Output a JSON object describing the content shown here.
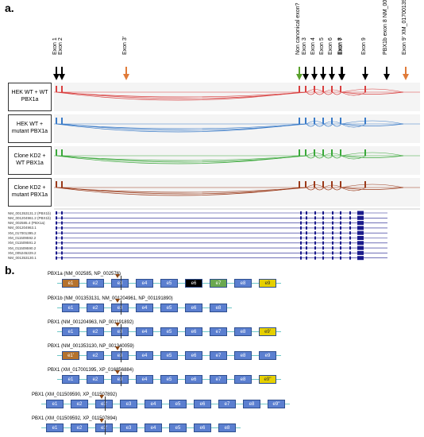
{
  "panel_a": {
    "letter": "a.",
    "exon_labels": [
      {
        "text": "Exon 1",
        "color": "#000000"
      },
      {
        "text": "Exon 2",
        "color": "#000000"
      },
      {
        "text": "Exon 3'",
        "color": "#e07b39"
      },
      {
        "text": "Non canonical exon?",
        "color": "#5aa02c"
      },
      {
        "text": "Exon 3",
        "color": "#000000"
      },
      {
        "text": "Exon 4",
        "color": "#000000"
      },
      {
        "text": "Exon 5",
        "color": "#000000"
      },
      {
        "text": "Exon 6",
        "color": "#000000"
      },
      {
        "text": "Exon 7",
        "color": "#000000"
      },
      {
        "text": "Exon 8",
        "color": "#000000"
      },
      {
        "text": "Exon 9",
        "color": "#000000"
      },
      {
        "text": "PBX1b exon 8 NM_001353131",
        "color": "#000000"
      },
      {
        "text": "Exon 9' XM_017001395",
        "color": "#e07b39"
      }
    ],
    "conditions": [
      {
        "label": "HEK WT + WT PBX1a",
        "color": "#d94040"
      },
      {
        "label": "HEK WT + mutant PBX1a",
        "color": "#3a7bc8"
      },
      {
        "label": "Clone KD2 + WT PBX1a",
        "color": "#3aa83a"
      },
      {
        "label": "Clone KD2 + mutant PBX1a",
        "color": "#9b3a1a"
      }
    ],
    "reference_tracks": [
      "NM_001353131.2 (PBX1b)",
      "NM_001204961.2 (PBX1b)",
      "NM_002585.4 (PBX1a)",
      "NM_001204963.1",
      "XM_017001395.2",
      "XM_011509592.2",
      "XM_011509591.2",
      "XM_011509590.2",
      "XM_005245229.2",
      "NM_001353130.1"
    ]
  },
  "panel_b": {
    "letter": "b.",
    "isoforms": [
      {
        "title": "PBX1a (NM_002585, NP_002576)",
        "exons": [
          {
            "label": "e1",
            "color": "#b5722d"
          },
          {
            "label": "e2",
            "color": "#5b7fd0"
          },
          {
            "label": "e3",
            "color": "#5b7fd0"
          },
          {
            "label": "e4",
            "color": "#5b7fd0"
          },
          {
            "label": "e5",
            "color": "#5b7fd0"
          },
          {
            "label": "e6",
            "color": "#000000"
          },
          {
            "label": "e7",
            "color": "#6aa84f"
          },
          {
            "label": "e8",
            "color": "#5b7fd0"
          },
          {
            "label": "e9",
            "color": "#e6d000"
          }
        ]
      },
      {
        "title": "PBX1b (NM_001353131, NM_001204961, NP_001191890)",
        "exons": [
          {
            "label": "e1",
            "color": "#5b7fd0"
          },
          {
            "label": "e2",
            "color": "#5b7fd0"
          },
          {
            "label": "e3",
            "color": "#5b7fd0"
          },
          {
            "label": "e4",
            "color": "#5b7fd0"
          },
          {
            "label": "e5",
            "color": "#5b7fd0"
          },
          {
            "label": "e6",
            "color": "#5b7fd0"
          },
          {
            "label": "e8",
            "color": "#5b7fd0"
          }
        ]
      },
      {
        "title": "PBX1 (NM_001204963, NP_001191892)",
        "exons": [
          {
            "label": "e1",
            "color": "#5b7fd0"
          },
          {
            "label": "e2",
            "color": "#5b7fd0"
          },
          {
            "label": "e3",
            "color": "#5b7fd0"
          },
          {
            "label": "e4",
            "color": "#5b7fd0"
          },
          {
            "label": "e5",
            "color": "#5b7fd0"
          },
          {
            "label": "e6",
            "color": "#5b7fd0"
          },
          {
            "label": "e7",
            "color": "#5b7fd0"
          },
          {
            "label": "e8",
            "color": "#5b7fd0"
          },
          {
            "label": "e9'",
            "color": "#e6d000"
          }
        ]
      },
      {
        "title": "PBX1 (NM_001353130, NP_001340059)",
        "exons": [
          {
            "label": "e1'",
            "color": "#b5722d"
          },
          {
            "label": "e2",
            "color": "#5b7fd0"
          },
          {
            "label": "e3",
            "color": "#5b7fd0"
          },
          {
            "label": "e4",
            "color": "#5b7fd0"
          },
          {
            "label": "e5",
            "color": "#5b7fd0"
          },
          {
            "label": "e6",
            "color": "#5b7fd0"
          },
          {
            "label": "e7",
            "color": "#5b7fd0"
          },
          {
            "label": "e8",
            "color": "#5b7fd0"
          },
          {
            "label": "e9",
            "color": "#5b7fd0"
          }
        ]
      },
      {
        "title": "PBX1 (XM_017001395, XP_016856884)",
        "exons": [
          {
            "label": "e1",
            "color": "#5b7fd0"
          },
          {
            "label": "e2",
            "color": "#5b7fd0"
          },
          {
            "label": "e3",
            "color": "#5b7fd0"
          },
          {
            "label": "e4",
            "color": "#5b7fd0"
          },
          {
            "label": "e5",
            "color": "#5b7fd0"
          },
          {
            "label": "e6",
            "color": "#5b7fd0"
          },
          {
            "label": "e7",
            "color": "#5b7fd0"
          },
          {
            "label": "e8",
            "color": "#5b7fd0"
          },
          {
            "label": "e9''",
            "color": "#e6d000"
          }
        ]
      },
      {
        "title": "PBX1 (XM_011509590, XP_011507892)",
        "exons": [
          {
            "label": "e1",
            "color": "#5b7fd0"
          },
          {
            "label": "e2",
            "color": "#5b7fd0"
          },
          {
            "label": "e3'",
            "color": "#5b7fd0"
          },
          {
            "label": "e3",
            "color": "#5b7fd0"
          },
          {
            "label": "e4",
            "color": "#5b7fd0"
          },
          {
            "label": "e5",
            "color": "#5b7fd0"
          },
          {
            "label": "e6",
            "color": "#5b7fd0"
          },
          {
            "label": "e7",
            "color": "#5b7fd0"
          },
          {
            "label": "e8",
            "color": "#5b7fd0"
          },
          {
            "label": "e9''",
            "color": "#5b7fd0"
          }
        ]
      },
      {
        "title": "PBX1 (XM_011509592, XP_011507894)",
        "exons": [
          {
            "label": "e1",
            "color": "#5b7fd0"
          },
          {
            "label": "e2",
            "color": "#5b7fd0"
          },
          {
            "label": "e3'",
            "color": "#5b7fd0"
          },
          {
            "label": "e3",
            "color": "#5b7fd0"
          },
          {
            "label": "e4",
            "color": "#5b7fd0"
          },
          {
            "label": "e5",
            "color": "#5b7fd0"
          },
          {
            "label": "e6",
            "color": "#5b7fd0"
          },
          {
            "label": "e8",
            "color": "#5b7fd0"
          }
        ]
      }
    ]
  }
}
